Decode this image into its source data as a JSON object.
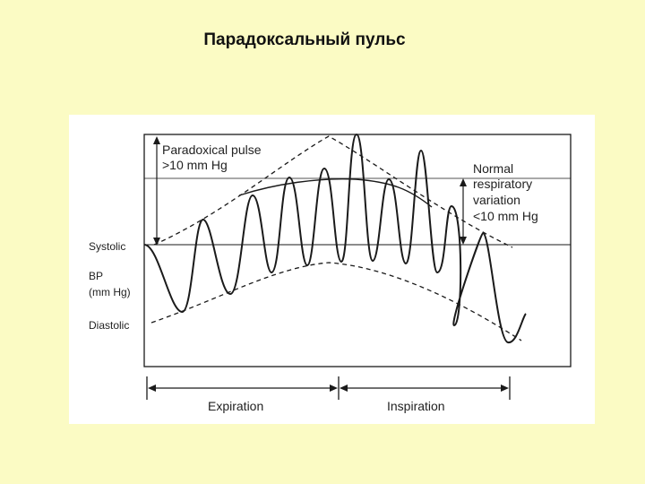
{
  "slide": {
    "title": "Парадоксальный пульс"
  },
  "figure": {
    "y_labels": {
      "systolic": "Systolic",
      "bp": "BP",
      "units": "(mm Hg)",
      "diastolic": "Diastolic"
    },
    "paradoxical_annotation": {
      "line1": "Paradoxical pulse",
      "line2": ">10 mm Hg"
    },
    "normal_annotation": {
      "line1": "Normal",
      "line2": "respiratory",
      "line3": "variation",
      "line4": "<10 mm Hg"
    },
    "phases": {
      "expiration": "Expiration",
      "inspiration": "Inspiration"
    }
  },
  "colors": {
    "background": "#fbfbc4",
    "figure_background": "#ffffff",
    "line": "#1a1a1a"
  }
}
